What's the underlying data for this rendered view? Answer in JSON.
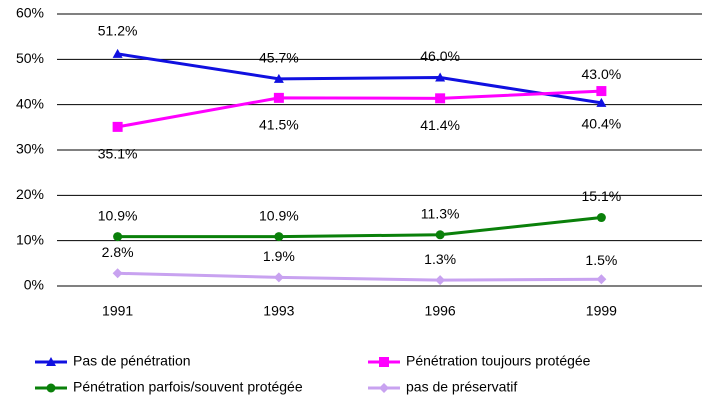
{
  "chart_data": {
    "type": "line",
    "categories": [
      "1991",
      "1993",
      "1996",
      "1999"
    ],
    "series": [
      {
        "name": "Pas de pénétration",
        "color": "#1010e0",
        "marker": "triangle",
        "values": [
          51.2,
          45.7,
          46.0,
          40.4
        ],
        "value_labels": [
          "51.2%",
          "45.7%",
          "46.0%",
          "40.4%"
        ]
      },
      {
        "name": "Pénétration toujours protégée",
        "color": "#ff00ff",
        "marker": "square",
        "values": [
          35.1,
          41.5,
          41.4,
          43.0
        ],
        "value_labels": [
          "35.1%",
          "41.5%",
          "41.4%",
          "43.0%"
        ]
      },
      {
        "name": "Pénétration parfois/souvent protégée",
        "color": "#0a800a",
        "marker": "circle",
        "values": [
          10.9,
          10.9,
          11.3,
          15.1
        ],
        "value_labels": [
          "10.9%",
          "10.9%",
          "11.3%",
          "15.1%"
        ]
      },
      {
        "name": "pas de préservatif",
        "color": "#c8a2f0",
        "marker": "diamond",
        "values": [
          2.8,
          1.9,
          1.3,
          1.5
        ],
        "value_labels": [
          "2.8%",
          "1.9%",
          "1.3%",
          "1.5%"
        ]
      }
    ],
    "ylim": [
      0,
      60
    ],
    "yticks": [
      {
        "value": 0,
        "label": "0%"
      },
      {
        "value": 10,
        "label": "10%"
      },
      {
        "value": 20,
        "label": "20%"
      },
      {
        "value": 30,
        "label": "30%"
      },
      {
        "value": 40,
        "label": "40%"
      },
      {
        "value": 50,
        "label": "50%"
      },
      {
        "value": 60,
        "label": "60%"
      }
    ],
    "grid": true
  }
}
